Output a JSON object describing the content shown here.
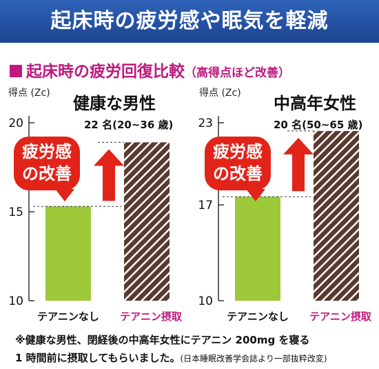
{
  "banner": {
    "title": "起床時の疲労感や眠気を軽減"
  },
  "section": {
    "title": "起床時の疲労回復比較",
    "subtitle": "（高得点ほど改善）"
  },
  "badge": {
    "line1": "疲労感",
    "line2": "の改善"
  },
  "note": {
    "line1": "※健康な男性、閉経後の中高年女性にテアニン 200mg を寝る",
    "line2_main": "1 時間前に摂取してもらいました。",
    "line2_source": "(日本睡眠改善学会誌より一部抜粋改変)"
  },
  "colors": {
    "banner": "#2464b4",
    "accent": "#c0187e",
    "placebo_bar": "#9cc83a",
    "theanine_bar": "#5a3a2e",
    "badge": "#e2231a"
  },
  "chart_data": [
    {
      "type": "bar",
      "title": "健康な男性",
      "subtitle": "22 名(20~36 歳)",
      "ylabel": "得点 (Zc)",
      "ylim": [
        10,
        20
      ],
      "yticks": [
        10,
        15,
        20
      ],
      "categories": [
        "テアニンなし",
        "テアニン摂取"
      ],
      "values": [
        15.3,
        18.9
      ]
    },
    {
      "type": "bar",
      "title": "中高年女性",
      "subtitle": "20 名(50~65 歳)",
      "ylabel": "得点 (Zc)",
      "ylim": [
        10,
        23
      ],
      "yticks": [
        10,
        17,
        23
      ],
      "categories": [
        "テアニンなし",
        "テアニン摂取"
      ],
      "values": [
        17.6,
        22.4
      ]
    }
  ]
}
